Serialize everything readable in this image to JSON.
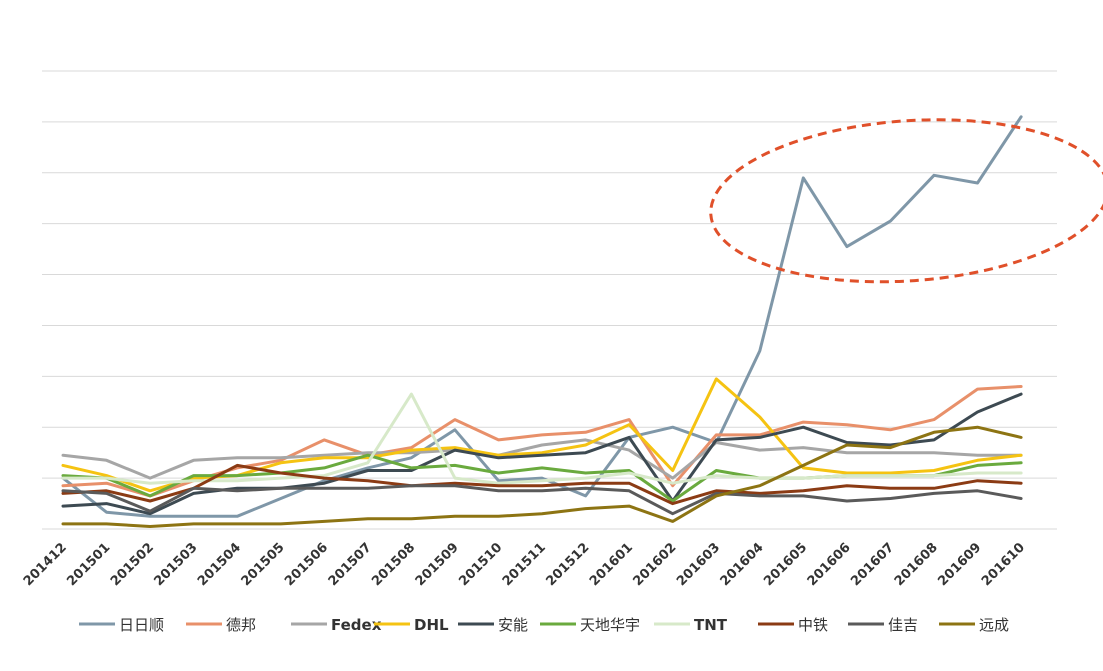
{
  "chart_data": {
    "type": "line",
    "title": "",
    "xlabel": "",
    "ylabel": "",
    "ylim": [
      0,
      9
    ],
    "grid": true,
    "legend": "bottom",
    "categories": [
      "201412",
      "201501",
      "201502",
      "201503",
      "201504",
      "201505",
      "201506",
      "201507",
      "201508",
      "201509",
      "201510",
      "201511",
      "201512",
      "201601",
      "201602",
      "201603",
      "201604",
      "201605",
      "201606",
      "201607",
      "201608",
      "201609",
      "201610"
    ],
    "series": [
      {
        "name": "日日顺",
        "color": "#7f97a8",
        "bold": false,
        "values": [
          1.0,
          0.33,
          0.25,
          0.25,
          0.25,
          0.6,
          0.95,
          1.2,
          1.4,
          1.95,
          0.95,
          1.0,
          0.65,
          1.8,
          2.0,
          1.7,
          3.5,
          6.9,
          5.55,
          6.05,
          6.95,
          6.8,
          8.1
        ]
      },
      {
        "name": "德邦",
        "color": "#e8906a",
        "bold": false,
        "values": [
          0.85,
          0.9,
          0.65,
          0.95,
          1.2,
          1.35,
          1.75,
          1.45,
          1.6,
          2.15,
          1.75,
          1.85,
          1.9,
          2.15,
          0.85,
          1.85,
          1.85,
          2.1,
          2.05,
          1.95,
          2.15,
          2.75,
          2.8
        ]
      },
      {
        "name": "Fedex",
        "color": "#a6a6a6",
        "bold": true,
        "values": [
          1.45,
          1.35,
          1.0,
          1.35,
          1.4,
          1.4,
          1.45,
          1.5,
          1.5,
          1.55,
          1.45,
          1.65,
          1.75,
          1.55,
          1.0,
          1.7,
          1.55,
          1.6,
          1.5,
          1.5,
          1.5,
          1.45,
          1.45
        ]
      },
      {
        "name": "DHL",
        "color": "#f5c312",
        "bold": true,
        "values": [
          1.25,
          1.05,
          0.75,
          1.0,
          1.05,
          1.3,
          1.4,
          1.4,
          1.55,
          1.6,
          1.45,
          1.5,
          1.65,
          2.05,
          1.15,
          2.95,
          2.2,
          1.2,
          1.1,
          1.1,
          1.15,
          1.35,
          1.45
        ]
      },
      {
        "name": "安能",
        "color": "#3d4a52",
        "bold": false,
        "values": [
          0.45,
          0.5,
          0.3,
          0.7,
          0.8,
          0.8,
          0.9,
          1.15,
          1.15,
          1.55,
          1.4,
          1.45,
          1.5,
          1.8,
          0.55,
          1.75,
          1.8,
          2.0,
          1.7,
          1.65,
          1.75,
          2.3,
          2.65
        ]
      },
      {
        "name": "天地华宇",
        "color": "#6aaa3e",
        "bold": false,
        "values": [
          1.05,
          1.0,
          0.65,
          1.05,
          1.05,
          1.1,
          1.2,
          1.45,
          1.2,
          1.25,
          1.1,
          1.2,
          1.1,
          1.15,
          0.55,
          1.15,
          1.0,
          1.0,
          1.05,
          1.05,
          1.05,
          1.25,
          1.3
        ]
      },
      {
        "name": "TNT",
        "color": "#d7e9c9",
        "bold": true,
        "values": [
          1.0,
          1.0,
          0.9,
          0.95,
          0.95,
          1.0,
          1.05,
          1.3,
          2.65,
          1.0,
          0.9,
          0.95,
          1.0,
          1.1,
          0.9,
          1.05,
          1.0,
          1.0,
          1.05,
          1.05,
          1.05,
          1.1,
          1.1
        ]
      },
      {
        "name": "中铁",
        "color": "#8b3b14",
        "bold": false,
        "values": [
          0.7,
          0.75,
          0.55,
          0.8,
          1.25,
          1.1,
          1.0,
          0.95,
          0.85,
          0.9,
          0.85,
          0.85,
          0.9,
          0.9,
          0.5,
          0.75,
          0.7,
          0.75,
          0.85,
          0.8,
          0.8,
          0.95,
          0.9
        ]
      },
      {
        "name": "佳吉",
        "color": "#5a5a5a",
        "bold": false,
        "values": [
          0.75,
          0.7,
          0.35,
          0.8,
          0.75,
          0.8,
          0.8,
          0.8,
          0.85,
          0.85,
          0.75,
          0.75,
          0.8,
          0.75,
          0.3,
          0.7,
          0.65,
          0.65,
          0.55,
          0.6,
          0.7,
          0.75,
          0.6
        ]
      },
      {
        "name": "远成",
        "color": "#8d7413",
        "bold": false,
        "values": [
          0.1,
          0.1,
          0.05,
          0.1,
          0.1,
          0.1,
          0.15,
          0.2,
          0.2,
          0.25,
          0.25,
          0.3,
          0.4,
          0.45,
          0.15,
          0.65,
          0.85,
          1.25,
          1.65,
          1.6,
          1.9,
          2.0,
          1.8
        ]
      }
    ],
    "annotation": {
      "shape": "ellipse",
      "style": "dashed",
      "color": "#e0502a",
      "from": "201605",
      "to": "201610"
    }
  }
}
